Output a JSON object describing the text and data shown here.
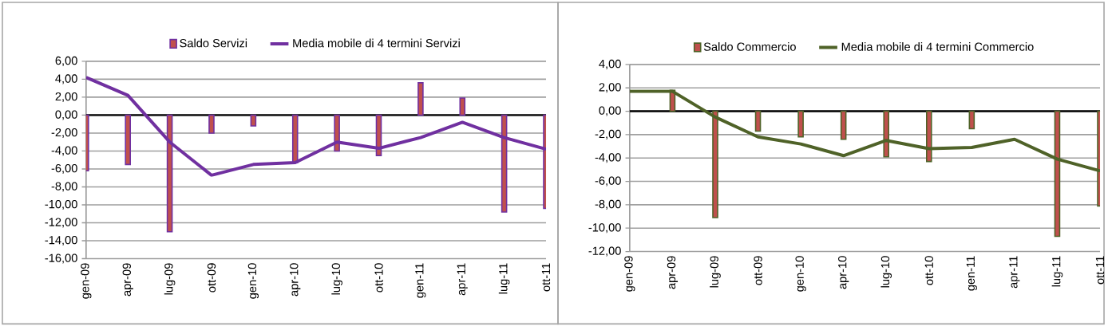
{
  "chart_data": [
    {
      "type": "bar",
      "categories": [
        "gen-09",
        "apr-09",
        "lug-09",
        "ott-09",
        "gen-10",
        "apr-10",
        "lug-10",
        "ott-10",
        "gen-11",
        "apr-11",
        "lug-11",
        "ott-11"
      ],
      "series": [
        {
          "name": "Saldo Servizi",
          "color": "#c0504d",
          "values": [
            -6.2,
            -5.5,
            -13.0,
            -2.0,
            -1.2,
            -5.3,
            -4.0,
            -4.5,
            3.6,
            1.9,
            -10.8,
            -10.4
          ]
        },
        {
          "name": "Media mobile di 4 termini Servizi",
          "type": "line",
          "color": "#7030a0",
          "values": [
            4.2,
            2.2,
            -3.0,
            -6.7,
            -5.5,
            -5.3,
            -3.0,
            -3.7,
            -2.5,
            -0.8,
            -2.5,
            -3.8
          ]
        }
      ],
      "ylim": [
        -16,
        6
      ],
      "yticks": [
        {
          "value": -16,
          "label": "-16,00"
        },
        {
          "value": -14,
          "label": "-14,00"
        },
        {
          "value": -12,
          "label": "-12,00"
        },
        {
          "value": -10,
          "label": "-10,00"
        },
        {
          "value": -8,
          "label": "-8,00"
        },
        {
          "value": -6,
          "label": "-6,00"
        },
        {
          "value": -4,
          "label": "-4,00"
        },
        {
          "value": -2,
          "label": "-2,00"
        },
        {
          "value": 0,
          "label": "0,00"
        },
        {
          "value": 2,
          "label": "2,00"
        },
        {
          "value": 4,
          "label": "4,00"
        },
        {
          "value": 6,
          "label": "6,00"
        }
      ],
      "grid": "y",
      "legend": "top"
    },
    {
      "type": "bar",
      "categories": [
        "gen-09",
        "apr-09",
        "lug-09",
        "ott-09",
        "gen-10",
        "apr-10",
        "lug-10",
        "ott-10",
        "gen-11",
        "apr-11",
        "lug-11",
        "ott-11"
      ],
      "series": [
        {
          "name": "Saldo Commercio",
          "color": "#c0504d",
          "values": [
            null,
            1.8,
            -9.1,
            -1.7,
            -2.2,
            -2.4,
            -3.9,
            -4.3,
            -1.5,
            null,
            -10.7,
            -8.1
          ]
        },
        {
          "name": "Media mobile di 4 termini Commercio",
          "type": "line",
          "color": "#4f6228",
          "values": [
            1.7,
            1.7,
            -0.5,
            -2.2,
            -2.8,
            -3.8,
            -2.5,
            -3.2,
            -3.1,
            -2.4,
            -4.1,
            -5.1
          ]
        }
      ],
      "ylim": [
        -12,
        4
      ],
      "yticks": [
        {
          "value": -12,
          "label": "-12,00"
        },
        {
          "value": -10,
          "label": "-10,00"
        },
        {
          "value": -8,
          "label": "-8,00"
        },
        {
          "value": -6,
          "label": "-6,00"
        },
        {
          "value": -4,
          "label": "-4,00"
        },
        {
          "value": -2,
          "label": "-2,00"
        },
        {
          "value": 0,
          "label": "0,00"
        },
        {
          "value": 2,
          "label": "2,00"
        },
        {
          "value": 4,
          "label": "4,00"
        }
      ],
      "grid": "y",
      "legend": "top"
    }
  ]
}
